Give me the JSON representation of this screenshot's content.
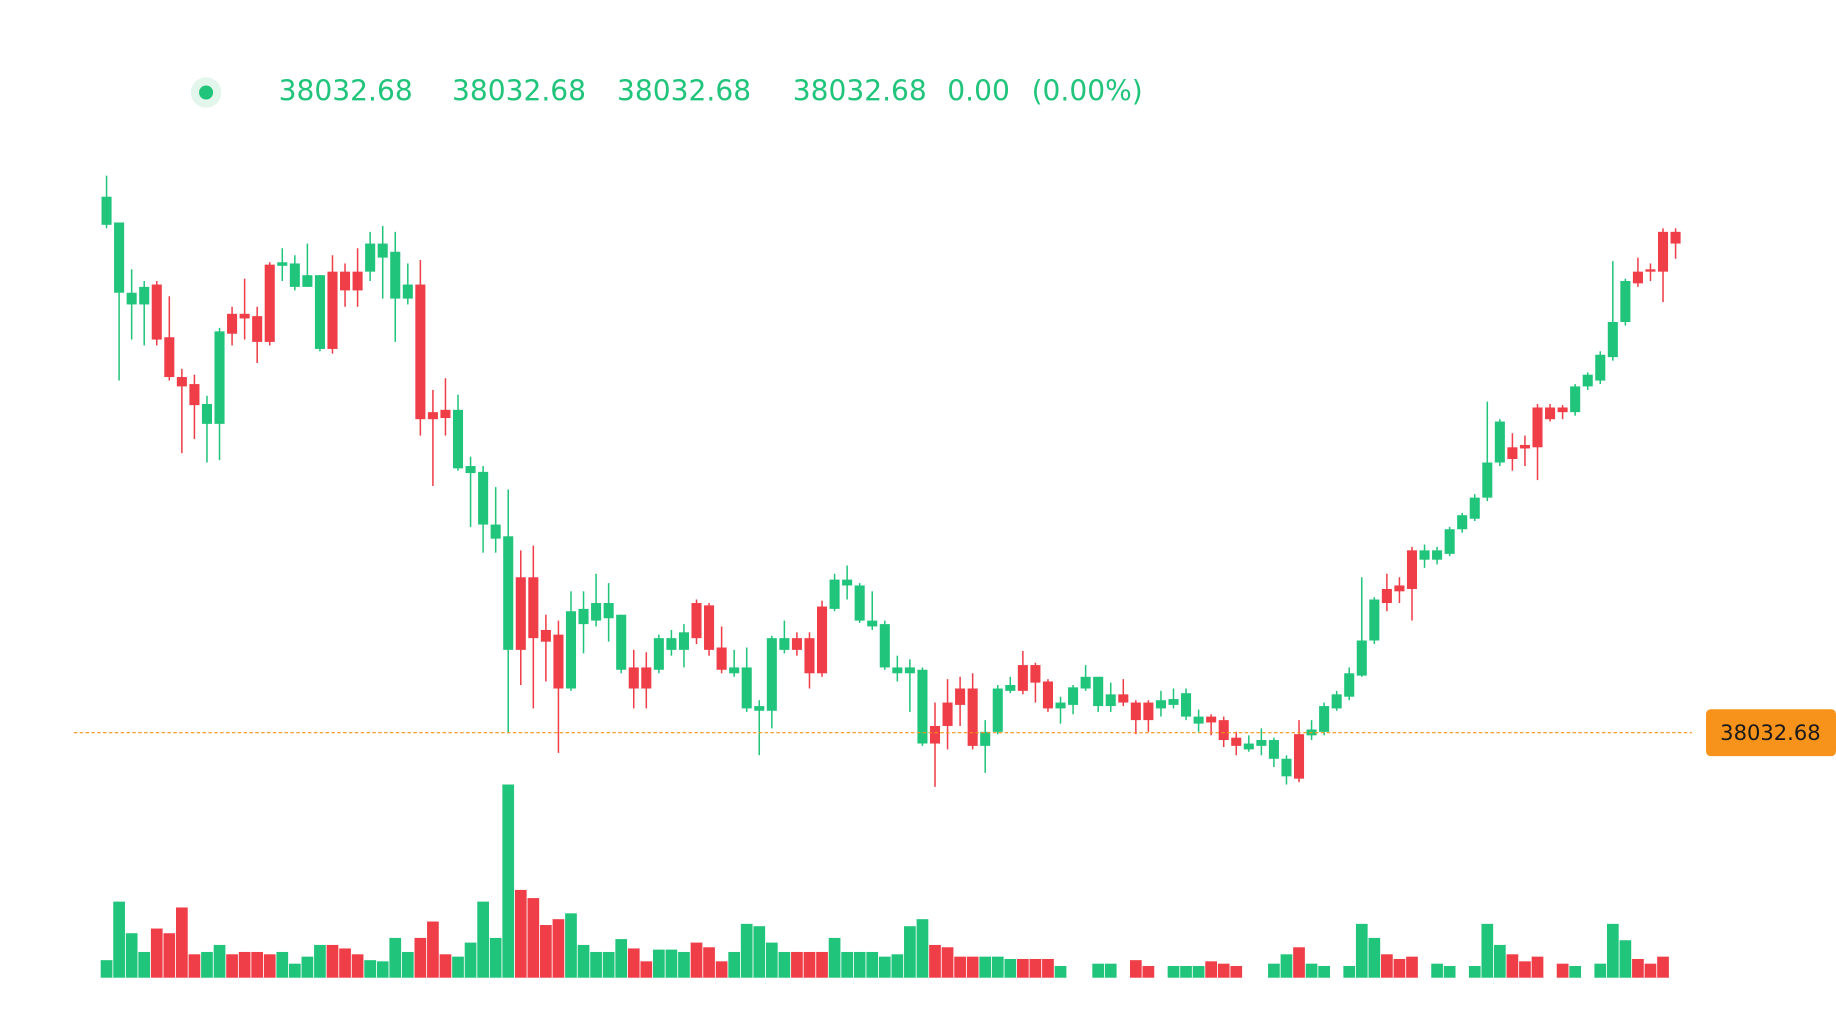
{
  "legend": {
    "open": "38032.68",
    "high": "38032.68",
    "low": "38032.68",
    "close": "38032.68",
    "change": "0.00",
    "change_percent": "(0.00%)"
  },
  "chart_data": {
    "type": "candlestick",
    "up_color": "#21c47b",
    "down_color": "#ef3e48",
    "price_line_color": "#f7931a",
    "ylim": [
      37500,
      43000
    ],
    "volume_ylim": [
      0,
      2000
    ],
    "last_price": 38032.68,
    "open": [
      42370,
      41790,
      41690,
      41690,
      41860,
      41410,
      41070,
      41010,
      40670,
      40670,
      41610,
      41610,
      41590,
      42030,
      42020,
      41840,
      41840,
      41310,
      41970,
      41970,
      41970,
      41970,
      42090,
      41740,
      41740,
      41860,
      40770,
      40790,
      40290,
      40250,
      39810,
      39690,
      38740,
      39360,
      39360,
      38910,
      38870,
      38410,
      38960,
      38990,
      39010,
      38570,
      38590,
      38590,
      38570,
      38740,
      38740,
      39140,
      39120,
      38760,
      38540,
      38240,
      38220,
      38220,
      38740,
      38840,
      38840,
      39110,
      39090,
      39290,
      38990,
      38940,
      38590,
      38540,
      38540,
      37940,
      38090,
      38290,
      38410,
      38410,
      37920,
      38040,
      38390,
      38610,
      38610,
      38470,
      38240,
      38270,
      38410,
      38260,
      38260,
      38360,
      38290,
      38290,
      38240,
      38270,
      38170,
      38110,
      38170,
      38140,
      37990,
      37890,
      37920,
      37810,
      37660,
      38020,
      38010,
      38040,
      38240,
      38340,
      38520,
      38820,
      39260,
      39290,
      39590,
      39510,
      39510,
      39560,
      39770,
      39860,
      40040,
      40340,
      40470,
      40490,
      40810,
      40810,
      40810,
      40770,
      40990,
      41040,
      41240,
      41540,
      41970,
      41990,
      42310,
      42310
    ],
    "high": [
      42790,
      42390,
      41990,
      41890,
      41890,
      41760,
      41140,
      41090,
      40910,
      41490,
      41670,
      41910,
      41670,
      42050,
      42170,
      42110,
      42210,
      41940,
      42110,
      42040,
      42170,
      42310,
      42360,
      42310,
      42040,
      42070,
      40960,
      41060,
      40920,
      40390,
      40310,
      40130,
      40110,
      39590,
      39630,
      39040,
      38990,
      39240,
      39240,
      39390,
      39310,
      39040,
      38740,
      38720,
      38870,
      38910,
      38960,
      39170,
      39140,
      38940,
      38740,
      38760,
      38310,
      38860,
      38990,
      38890,
      38890,
      39160,
      39390,
      39460,
      39310,
      39240,
      38990,
      38690,
      38660,
      38590,
      38290,
      38490,
      38510,
      38540,
      38140,
      38440,
      38510,
      38730,
      38630,
      38490,
      38340,
      38440,
      38610,
      38510,
      38460,
      38490,
      38310,
      38310,
      38390,
      38410,
      38410,
      38230,
      38190,
      38170,
      38040,
      38010,
      38070,
      37990,
      37840,
      38140,
      38140,
      38290,
      38390,
      38590,
      39360,
      39190,
      39390,
      39360,
      39620,
      39640,
      39620,
      39790,
      39910,
      40070,
      40860,
      40710,
      40590,
      40570,
      40840,
      40840,
      40830,
      41010,
      41110,
      41290,
      42060,
      41910,
      42090,
      42040,
      42340,
      42340
    ],
    "low": [
      42340,
      41040,
      41390,
      41340,
      41340,
      41040,
      40420,
      40540,
      40340,
      40360,
      41340,
      41390,
      41190,
      41340,
      41890,
      41810,
      41840,
      41290,
      41270,
      41670,
      41670,
      41890,
      41740,
      41370,
      41690,
      40570,
      40140,
      40570,
      40270,
      39790,
      39570,
      39570,
      38030,
      38440,
      38240,
      38470,
      37860,
      38390,
      38710,
      38940,
      38810,
      38540,
      38240,
      38240,
      38540,
      38690,
      38590,
      38790,
      38690,
      38540,
      38510,
      38210,
      37840,
      38070,
      38710,
      38690,
      38410,
      38510,
      39070,
      39170,
      38970,
      38910,
      38570,
      38470,
      38210,
      37920,
      37570,
      37890,
      38090,
      37890,
      37690,
      38020,
      38370,
      38360,
      38290,
      38210,
      38110,
      38190,
      38390,
      38210,
      38210,
      38260,
      38020,
      38040,
      38170,
      38240,
      38140,
      38040,
      38010,
      37910,
      37840,
      37870,
      37840,
      37740,
      37590,
      37610,
      37970,
      38010,
      38220,
      38310,
      38510,
      38790,
      39070,
      39140,
      38990,
      39440,
      39470,
      39540,
      39740,
      39840,
      40010,
      40310,
      40270,
      40310,
      40190,
      40690,
      40710,
      40740,
      40960,
      41010,
      41210,
      41510,
      41840,
      41890,
      41710,
      42080
    ],
    "close": [
      42610,
      42390,
      41790,
      41840,
      41390,
      41070,
      40990,
      40830,
      40840,
      41460,
      41440,
      41570,
      41370,
      41370,
      42050,
      42040,
      41940,
      41940,
      41310,
      41810,
      41810,
      42210,
      42210,
      42140,
      41860,
      40710,
      40710,
      40720,
      40790,
      40310,
      40260,
      39810,
      39710,
      38740,
      38840,
      38810,
      38410,
      39070,
      39090,
      39140,
      39140,
      39040,
      38410,
      38410,
      38840,
      38840,
      38890,
      38840,
      38740,
      38570,
      38590,
      38590,
      38260,
      38840,
      38840,
      38740,
      38540,
      38540,
      39340,
      39340,
      39290,
      38990,
      38960,
      38590,
      38590,
      38570,
      37940,
      38090,
      38270,
      37920,
      38040,
      38410,
      38440,
      38390,
      38460,
      38240,
      38290,
      38420,
      38510,
      38510,
      38360,
      38290,
      38140,
      38140,
      38310,
      38320,
      38370,
      38170,
      38120,
      37970,
      37920,
      37940,
      37970,
      37970,
      37810,
      37640,
      38060,
      38260,
      38360,
      38540,
      38820,
      39170,
      39140,
      39240,
      39260,
      39590,
      39590,
      39770,
      39890,
      40040,
      40340,
      40690,
      40370,
      40460,
      40470,
      40710,
      40770,
      40990,
      41090,
      41260,
      41540,
      41890,
      41870,
      41970,
      41970,
      42210
    ],
    "volume": [
      150,
      650,
      380,
      220,
      420,
      380,
      600,
      200,
      220,
      280,
      200,
      220,
      220,
      200,
      220,
      120,
      180,
      280,
      280,
      250,
      200,
      150,
      140,
      340,
      220,
      340,
      480,
      200,
      180,
      300,
      650,
      340,
      1650,
      750,
      680,
      450,
      500,
      550,
      280,
      220,
      220,
      330,
      250,
      140,
      240,
      240,
      220,
      300,
      260,
      140,
      220,
      460,
      440,
      300,
      220,
      220,
      220,
      220,
      340,
      220,
      220,
      220,
      180,
      200,
      440,
      500,
      280,
      260,
      180,
      180,
      180,
      180,
      160,
      160,
      160,
      160,
      100,
      null,
      null,
      120,
      120,
      null,
      150,
      100,
      null,
      100,
      100,
      100,
      140,
      120,
      100,
      null,
      null,
      120,
      200,
      260,
      120,
      100,
      null,
      100,
      460,
      340,
      200,
      160,
      180,
      null,
      120,
      100,
      null,
      100,
      460,
      280,
      200,
      140,
      180,
      null,
      120,
      100,
      null,
      120,
      460,
      320,
      160,
      120,
      180,
      null
    ]
  }
}
